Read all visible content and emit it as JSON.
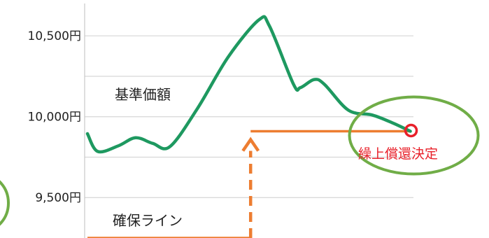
{
  "chart_data": {
    "type": "line",
    "y_ticks": [
      {
        "value": 9500,
        "label": "9,500円"
      },
      {
        "value": 10000,
        "label": "10,000円"
      },
      {
        "value": 10500,
        "label": "10,500円"
      }
    ],
    "x_range": [
      0,
      100
    ],
    "y_range": [
      9250,
      10700
    ],
    "grid": true,
    "series": [
      {
        "name": "基準価額",
        "color": "#1e9960",
        "points": [
          [
            0,
            9895
          ],
          [
            3,
            9785
          ],
          [
            9,
            9820
          ],
          [
            14,
            9870
          ],
          [
            19,
            9835
          ],
          [
            24,
            9815
          ],
          [
            32,
            10050
          ],
          [
            41,
            10370
          ],
          [
            50,
            10600
          ],
          [
            53,
            10560
          ],
          [
            60,
            10200
          ],
          [
            62,
            10180
          ],
          [
            66,
            10230
          ],
          [
            69,
            10200
          ],
          [
            76,
            10040
          ],
          [
            83,
            10010
          ],
          [
            89,
            9960
          ],
          [
            94,
            9910
          ]
        ]
      },
      {
        "name": "確保ライン",
        "color": "#ed7d31",
        "steps": [
          {
            "x_from": 0,
            "x_to": 47.5,
            "y": 9250
          },
          {
            "x_from": 47.5,
            "x_to": 94,
            "y": 9910
          }
        ]
      }
    ],
    "annotations": [
      {
        "kind": "label",
        "text": "基準価額",
        "color": "#222222"
      },
      {
        "kind": "label",
        "text": "確保ライン",
        "color": "#222222"
      },
      {
        "kind": "event",
        "text": "繰上償還決定",
        "color": "#e8202a",
        "x": 94,
        "y": 9910,
        "highlight_color": "#70ad47"
      },
      {
        "kind": "arrow",
        "x": 47.5,
        "from_y": 9250,
        "to_y": 9910,
        "color": "#ed7d31"
      }
    ]
  }
}
